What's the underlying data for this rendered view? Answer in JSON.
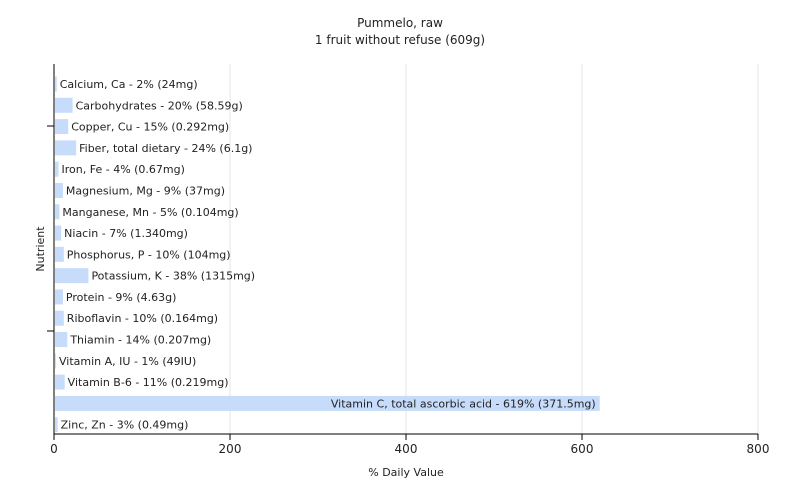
{
  "chart_data": {
    "type": "bar",
    "orientation": "horizontal",
    "title": "Pummelo, raw",
    "subtitle": "1 fruit without refuse (609g)",
    "xlabel": "% Daily Value",
    "ylabel": "Nutrient",
    "xlim": [
      0,
      800
    ],
    "xticks": [
      0,
      200,
      400,
      600,
      800
    ],
    "grid": true,
    "legend": "none",
    "bar_color": "#c6dcfa",
    "categories": [
      "Calcium, Ca",
      "Carbohydrates",
      "Copper, Cu",
      "Fiber, total dietary",
      "Iron, Fe",
      "Magnesium, Mg",
      "Manganese, Mn",
      "Niacin",
      "Phosphorus, P",
      "Potassium, K",
      "Protein",
      "Riboflavin",
      "Thiamin",
      "Vitamin A, IU",
      "Vitamin B-6",
      "Vitamin C, total ascorbic acid",
      "Zinc, Zn"
    ],
    "values": [
      2,
      20,
      15,
      24,
      4,
      9,
      5,
      7,
      10,
      38,
      9,
      10,
      14,
      1,
      11,
      619,
      3
    ],
    "labels": [
      "Calcium, Ca - 2% (24mg)",
      "Carbohydrates - 20% (58.59g)",
      "Copper, Cu - 15% (0.292mg)",
      "Fiber, total dietary - 24% (6.1g)",
      "Iron, Fe - 4% (0.67mg)",
      "Magnesium, Mg - 9% (37mg)",
      "Manganese, Mn - 5% (0.104mg)",
      "Niacin - 7% (1.340mg)",
      "Phosphorus, P - 10% (104mg)",
      "Potassium, K - 38% (1315mg)",
      "Protein - 9% (4.63g)",
      "Riboflavin - 10% (0.164mg)",
      "Thiamin - 14% (0.207mg)",
      "Vitamin A, IU - 1% (49IU)",
      "Vitamin B-6 - 11% (0.219mg)",
      "Vitamin C, total ascorbic acid - 619% (371.5mg)",
      "Zinc, Zn - 3% (0.49mg)"
    ]
  }
}
